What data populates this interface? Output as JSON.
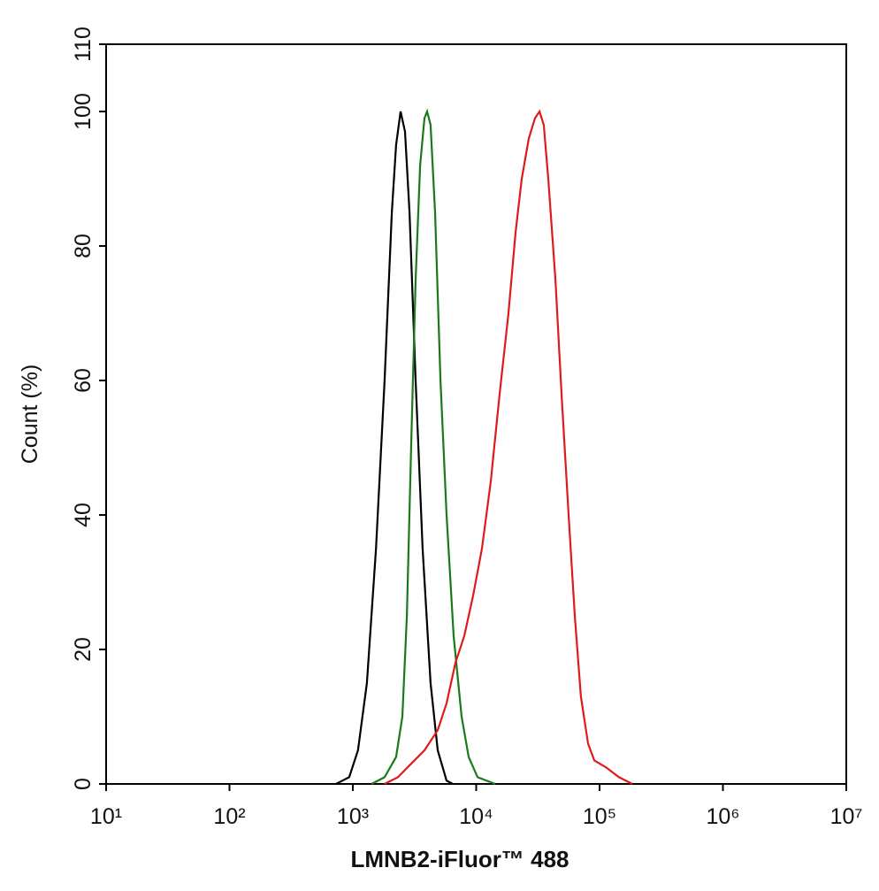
{
  "chart_data": {
    "type": "line",
    "xlabel": "LMNB2-iFluor™ 488",
    "ylabel": "Count  (%)",
    "xscale": "log",
    "xlim": [
      10,
      10000000
    ],
    "xticks": [
      {
        "value": 10,
        "label": "10¹"
      },
      {
        "value": 100,
        "label": "10²"
      },
      {
        "value": 1000,
        "label": "10³"
      },
      {
        "value": 10000,
        "label": "10⁴"
      },
      {
        "value": 100000,
        "label": "10⁵"
      },
      {
        "value": 1000000,
        "label": "10⁶"
      },
      {
        "value": 10000000,
        "label": "10⁷"
      }
    ],
    "ylim": [
      0,
      110
    ],
    "yticks": [
      0,
      20,
      40,
      60,
      80,
      100,
      110
    ],
    "series": [
      {
        "color": "#000000",
        "x": [
          730,
          935,
          1100,
          1300,
          1540,
          1810,
          2070,
          2240,
          2440,
          2650,
          2880,
          3230,
          3680,
          4270,
          4880,
          5750,
          6460
        ],
        "values": [
          0,
          1,
          5,
          15,
          35,
          60,
          85,
          95,
          100,
          97,
          85,
          60,
          35,
          15,
          5,
          0.5,
          0
        ]
      },
      {
        "color": "#1a7a1a",
        "x": [
          1420,
          1810,
          2240,
          2520,
          2740,
          2970,
          3230,
          3510,
          3810,
          4000,
          4270,
          4640,
          5130,
          5750,
          6560,
          7620,
          8690,
          10260,
          14260
        ],
        "values": [
          0,
          1,
          4,
          10,
          25,
          50,
          75,
          92,
          99,
          100,
          98,
          85,
          60,
          40,
          22,
          10,
          4,
          1,
          0
        ]
      },
      {
        "color": "#e01a1a",
        "x": [
          1810,
          2320,
          2970,
          3810,
          4880,
          5750,
          6790,
          8000,
          9440,
          11140,
          13120,
          15490,
          18280,
          20850,
          23390,
          26710,
          29990,
          32580,
          35320,
          38370,
          43850,
          49200,
          56100,
          62950,
          70630,
          80700,
          90570,
          112200,
          143900,
          184100
        ],
        "values": [
          0,
          1,
          3,
          5,
          8,
          12,
          18,
          22,
          28,
          35,
          45,
          58,
          70,
          82,
          90,
          96,
          99,
          100,
          98,
          90,
          75,
          58,
          40,
          25,
          13,
          6,
          3.5,
          2.5,
          1,
          0
        ]
      }
    ]
  }
}
